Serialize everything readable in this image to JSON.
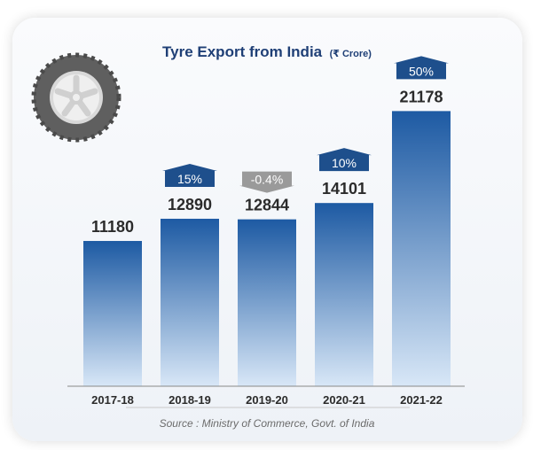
{
  "chart_data": {
    "type": "bar",
    "title": "Tyre Export from India",
    "title_unit": "(₹ Crore)",
    "categories": [
      "2017-18",
      "2018-19",
      "2019-20",
      "2020-21",
      "2021-22"
    ],
    "values": [
      11180,
      12890,
      12844,
      14101,
      21178
    ],
    "growth_labels": [
      null,
      "15%",
      "-0.4%",
      "10%",
      "50%"
    ],
    "growth_direction": [
      null,
      "up",
      "down",
      "up",
      "up"
    ],
    "ylim": [
      0,
      24000
    ],
    "grid": false,
    "xlabel": "",
    "ylabel": "",
    "source": "Source : Ministry of Commerce, Govt. of India"
  },
  "colors": {
    "title": "#1f3f76",
    "bar_top": "#1d5aa3",
    "bar_bottom": "#d8e7f7",
    "badge_up": "#1e4f8c",
    "badge_down": "#9a9a9a",
    "tyre_outer": "#5f5f5f",
    "tyre_inner": "#d9d9d9"
  },
  "icon": "tyre-icon"
}
